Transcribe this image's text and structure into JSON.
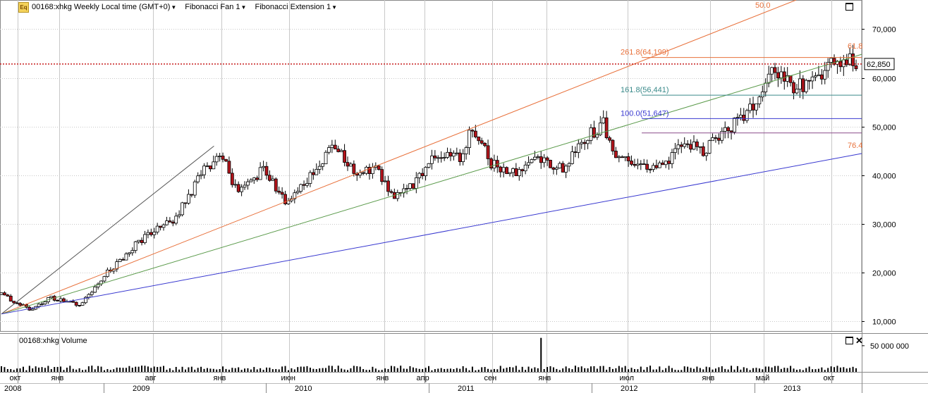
{
  "header": {
    "eq_badge": "Eq",
    "symbol_title": "00168:xhkg Weekly Local time (GMT+0)",
    "studies": [
      "Fibonacci Fan 1",
      "Fibonacci Extension 1"
    ]
  },
  "volume_panel": {
    "label": "00168:xhkg Volume",
    "y_tick_label": "50 000 000"
  },
  "colors": {
    "up": "#ffffff",
    "down": "#b3141b",
    "grid": "#c8c8c8",
    "fan_orange": "#e8703a",
    "fan_green": "#5a9a4a",
    "fan_blue": "#3838d0",
    "fan_grey": "#555555",
    "ext_orange": "#e8703a",
    "ext_teal": "#3a8a8a",
    "ext_blue": "#3838d0",
    "ext_purple": "#8a4a8a",
    "price_line": "#c81e1e"
  },
  "chart_data": {
    "type": "candlestick",
    "instrument": "00168:xhkg",
    "timeframe": "Weekly",
    "x_range": [
      "2008-08-25",
      "2013-11-25"
    ],
    "y_range": [
      8000,
      76000
    ],
    "y_ticks": [
      10000,
      20000,
      30000,
      40000,
      50000,
      60000,
      70000
    ],
    "y_tick_labels": [
      "10,000",
      "20,000",
      "30,000",
      "40,000",
      "50,000",
      "60,000",
      "70,000"
    ],
    "last_price": 62850,
    "last_price_label": "62,850",
    "month_labels": [
      {
        "date": "2008-10-01",
        "text": "окт"
      },
      {
        "date": "2009-01-01",
        "text": "янв"
      },
      {
        "date": "2009-08-01",
        "text": "авг"
      },
      {
        "date": "2010-01-01",
        "text": "янв"
      },
      {
        "date": "2010-06-01",
        "text": "июн"
      },
      {
        "date": "2011-01-01",
        "text": "янв"
      },
      {
        "date": "2011-04-01",
        "text": "апр"
      },
      {
        "date": "2011-09-01",
        "text": "сен"
      },
      {
        "date": "2012-01-01",
        "text": "янв"
      },
      {
        "date": "2012-07-01",
        "text": "июл"
      },
      {
        "date": "2013-01-01",
        "text": "янв"
      },
      {
        "date": "2013-05-01",
        "text": "май"
      },
      {
        "date": "2013-10-01",
        "text": "окт"
      }
    ],
    "year_labels": [
      {
        "date": "2008-08-25",
        "text": "2008"
      },
      {
        "date": "2009-06-15",
        "text": "2009"
      },
      {
        "date": "2010-06-15",
        "text": "2010"
      },
      {
        "date": "2011-06-15",
        "text": "2011"
      },
      {
        "date": "2012-06-15",
        "text": "2012"
      },
      {
        "date": "2013-06-15",
        "text": "2013"
      }
    ],
    "fib_fan": {
      "origin": {
        "date": "2008-08-25",
        "price": 11500
      },
      "anchor": {
        "date": "2009-12-15",
        "price": 46000
      },
      "lines": [
        {
          "label": "",
          "ratio": 0,
          "color": "#555555"
        },
        {
          "label": "50.0",
          "ratio": 0.5,
          "color": "#e8703a"
        },
        {
          "label": "61.8",
          "ratio": 0.618,
          "color": "#5a9a4a"
        },
        {
          "label": "76.4",
          "ratio": 0.764,
          "color": "#3838d0"
        }
      ]
    },
    "fib_extension": {
      "start_date": "2012-08-01",
      "levels": [
        {
          "label": "261.8(64,199)",
          "price": 64199,
          "color": "#e8703a"
        },
        {
          "label": "161.8(56,441)",
          "price": 56441,
          "color": "#3a8a8a"
        },
        {
          "label": "100.0(51,647)",
          "price": 51647,
          "color": "#3838d0"
        },
        {
          "label": "",
          "price": 48700,
          "color": "#8a4a8a"
        }
      ]
    },
    "volume": {
      "y_range": [
        0,
        70000000
      ],
      "tick": 50000000,
      "spike": {
        "date": "2011-12-19",
        "value": 65000000
      }
    },
    "key_points": [
      {
        "date": "2008-08-25",
        "price": 15500
      },
      {
        "date": "2008-10-27",
        "price": 12500
      },
      {
        "date": "2008-12-15",
        "price": 14800
      },
      {
        "date": "2009-02-16",
        "price": 13200
      },
      {
        "date": "2009-04-20",
        "price": 20000
      },
      {
        "date": "2009-07-13",
        "price": 27500
      },
      {
        "date": "2009-09-14",
        "price": 30500
      },
      {
        "date": "2009-11-16",
        "price": 40000
      },
      {
        "date": "2009-12-28",
        "price": 45000
      },
      {
        "date": "2010-02-08",
        "price": 36000
      },
      {
        "date": "2010-04-05",
        "price": 41500
      },
      {
        "date": "2010-05-24",
        "price": 34500
      },
      {
        "date": "2010-07-19",
        "price": 40000
      },
      {
        "date": "2010-09-13",
        "price": 46000
      },
      {
        "date": "2010-10-25",
        "price": 41000
      },
      {
        "date": "2010-12-13",
        "price": 41500
      },
      {
        "date": "2011-01-24",
        "price": 35000
      },
      {
        "date": "2011-03-14",
        "price": 38500
      },
      {
        "date": "2011-04-25",
        "price": 44500
      },
      {
        "date": "2011-06-20",
        "price": 43500
      },
      {
        "date": "2011-07-18",
        "price": 49500
      },
      {
        "date": "2011-08-29",
        "price": 42500
      },
      {
        "date": "2011-10-24",
        "price": 40500
      },
      {
        "date": "2011-12-05",
        "price": 44000
      },
      {
        "date": "2012-02-06",
        "price": 41000
      },
      {
        "date": "2012-03-26",
        "price": 47500
      },
      {
        "date": "2012-05-07",
        "price": 50500
      },
      {
        "date": "2012-05-28",
        "price": 45000
      },
      {
        "date": "2012-08-06",
        "price": 42000
      },
      {
        "date": "2012-09-17",
        "price": 41500
      },
      {
        "date": "2012-11-05",
        "price": 47000
      },
      {
        "date": "2012-12-17",
        "price": 45000
      },
      {
        "date": "2013-02-04",
        "price": 49500
      },
      {
        "date": "2013-03-11",
        "price": 51000
      },
      {
        "date": "2013-04-22",
        "price": 55500
      },
      {
        "date": "2013-05-27",
        "price": 62500
      },
      {
        "date": "2013-07-01",
        "price": 58000
      },
      {
        "date": "2013-08-26",
        "price": 59000
      },
      {
        "date": "2013-10-07",
        "price": 64000
      },
      {
        "date": "2013-11-25",
        "price": 62850
      }
    ]
  }
}
